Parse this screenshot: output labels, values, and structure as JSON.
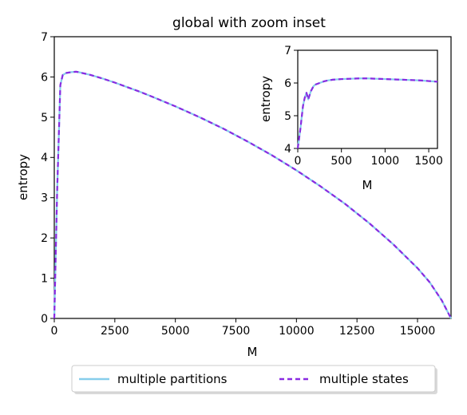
{
  "chart_data": [
    {
      "id": "main",
      "type": "line",
      "title": "global with zoom inset",
      "xlabel": "M",
      "ylabel": "entropy",
      "xlim": [
        0,
        16384
      ],
      "ylim": [
        0,
        7
      ],
      "xticks": [
        0,
        2500,
        5000,
        7500,
        10000,
        12500,
        15000
      ],
      "yticks": [
        0,
        1,
        2,
        3,
        4,
        5,
        6,
        7
      ],
      "grid": false,
      "legend_position": "bottom-center, outside plot",
      "series": [
        {
          "name": "multiple partitions",
          "color": "#87ceeb",
          "style": "solid",
          "x": [
            0,
            120,
            250,
            350,
            500,
            700,
            900,
            1000,
            1500,
            2000,
            2500,
            3000,
            3500,
            4000,
            5000,
            6000,
            7000,
            8000,
            9000,
            10000,
            11000,
            12000,
            13000,
            14000,
            15000,
            15500,
            16000,
            16384
          ],
          "y": [
            0.0,
            3.2,
            5.8,
            6.05,
            6.1,
            6.12,
            6.13,
            6.12,
            6.05,
            5.96,
            5.86,
            5.75,
            5.64,
            5.52,
            5.27,
            5.0,
            4.71,
            4.39,
            4.05,
            3.68,
            3.28,
            2.85,
            2.37,
            1.84,
            1.25,
            0.9,
            0.45,
            0.0
          ]
        },
        {
          "name": "multiple states",
          "color": "#8a2be2",
          "style": "dashed",
          "x": [
            0,
            120,
            250,
            350,
            500,
            700,
            900,
            1000,
            1500,
            2000,
            2500,
            3000,
            3500,
            4000,
            5000,
            6000,
            7000,
            8000,
            9000,
            10000,
            11000,
            12000,
            13000,
            14000,
            15000,
            15500,
            16000,
            16384
          ],
          "y": [
            0.0,
            3.2,
            5.8,
            6.05,
            6.1,
            6.12,
            6.13,
            6.12,
            6.05,
            5.96,
            5.86,
            5.75,
            5.64,
            5.52,
            5.27,
            5.0,
            4.71,
            4.39,
            4.05,
            3.68,
            3.28,
            2.85,
            2.37,
            1.84,
            1.25,
            0.9,
            0.45,
            0.0
          ]
        }
      ]
    },
    {
      "id": "inset",
      "type": "line",
      "title": "",
      "xlabel": "M",
      "ylabel": "entropy",
      "xlim": [
        0,
        1600
      ],
      "ylim": [
        4,
        7
      ],
      "xticks": [
        0,
        500,
        1000,
        1500
      ],
      "yticks": [
        4,
        5,
        6,
        7
      ],
      "grid": false,
      "series": [
        {
          "name": "multiple partitions",
          "color": "#87ceeb",
          "style": "solid",
          "x": [
            0,
            30,
            60,
            80,
            100,
            120,
            150,
            180,
            200,
            250,
            300,
            350,
            400,
            500,
            600,
            700,
            800,
            900,
            1000,
            1100,
            1200,
            1300,
            1400,
            1500,
            1600
          ],
          "y": [
            4.0,
            4.6,
            5.3,
            5.55,
            5.7,
            5.5,
            5.75,
            5.9,
            5.95,
            6.0,
            6.05,
            6.08,
            6.1,
            6.12,
            6.13,
            6.14,
            6.14,
            6.13,
            6.12,
            6.11,
            6.1,
            6.09,
            6.08,
            6.06,
            6.04
          ]
        },
        {
          "name": "multiple states",
          "color": "#8a2be2",
          "style": "dashed",
          "x": [
            0,
            30,
            60,
            80,
            100,
            120,
            150,
            180,
            200,
            250,
            300,
            350,
            400,
            500,
            600,
            700,
            800,
            900,
            1000,
            1100,
            1200,
            1300,
            1400,
            1500,
            1600
          ],
          "y": [
            4.0,
            4.6,
            5.3,
            5.55,
            5.7,
            5.5,
            5.75,
            5.9,
            5.95,
            6.0,
            6.05,
            6.08,
            6.1,
            6.12,
            6.13,
            6.14,
            6.14,
            6.13,
            6.12,
            6.11,
            6.1,
            6.09,
            6.08,
            6.06,
            6.04
          ]
        }
      ]
    }
  ]
}
